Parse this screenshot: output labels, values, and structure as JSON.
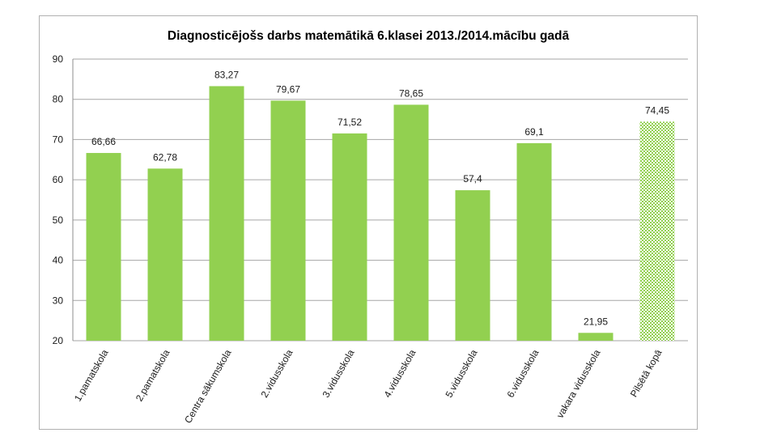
{
  "chart_data": {
    "type": "bar",
    "title": "Diagnosticējošs darbs matemātikā 6.klasei 2013./2014.mācību gadā",
    "categories": [
      "1.pamatskola",
      "2.pamatskola",
      "Centra sākumskola",
      "2.vidusskola",
      "3.vidusskola",
      "4.vidusskola",
      "5.vidusskola",
      "6.vidusskola",
      "vakara vidusskola",
      "Pilsētā kopā"
    ],
    "values": [
      66.66,
      62.78,
      83.27,
      79.67,
      71.52,
      78.65,
      57.4,
      69.1,
      21.95,
      74.45
    ],
    "value_labels": [
      "66,66",
      "62,78",
      "83,27",
      "79,67",
      "71,52",
      "78,65",
      "57,4",
      "69,1",
      "21,95",
      "74,45"
    ],
    "patterned": [
      false,
      false,
      false,
      false,
      false,
      false,
      false,
      false,
      false,
      true
    ],
    "ylim": [
      20,
      90
    ],
    "yticks": [
      20,
      30,
      40,
      50,
      60,
      70,
      80,
      90
    ],
    "xlabel": "",
    "ylabel": "",
    "grid": true,
    "bar_color": "#92d050",
    "grid_color": "#a6a6a6"
  }
}
